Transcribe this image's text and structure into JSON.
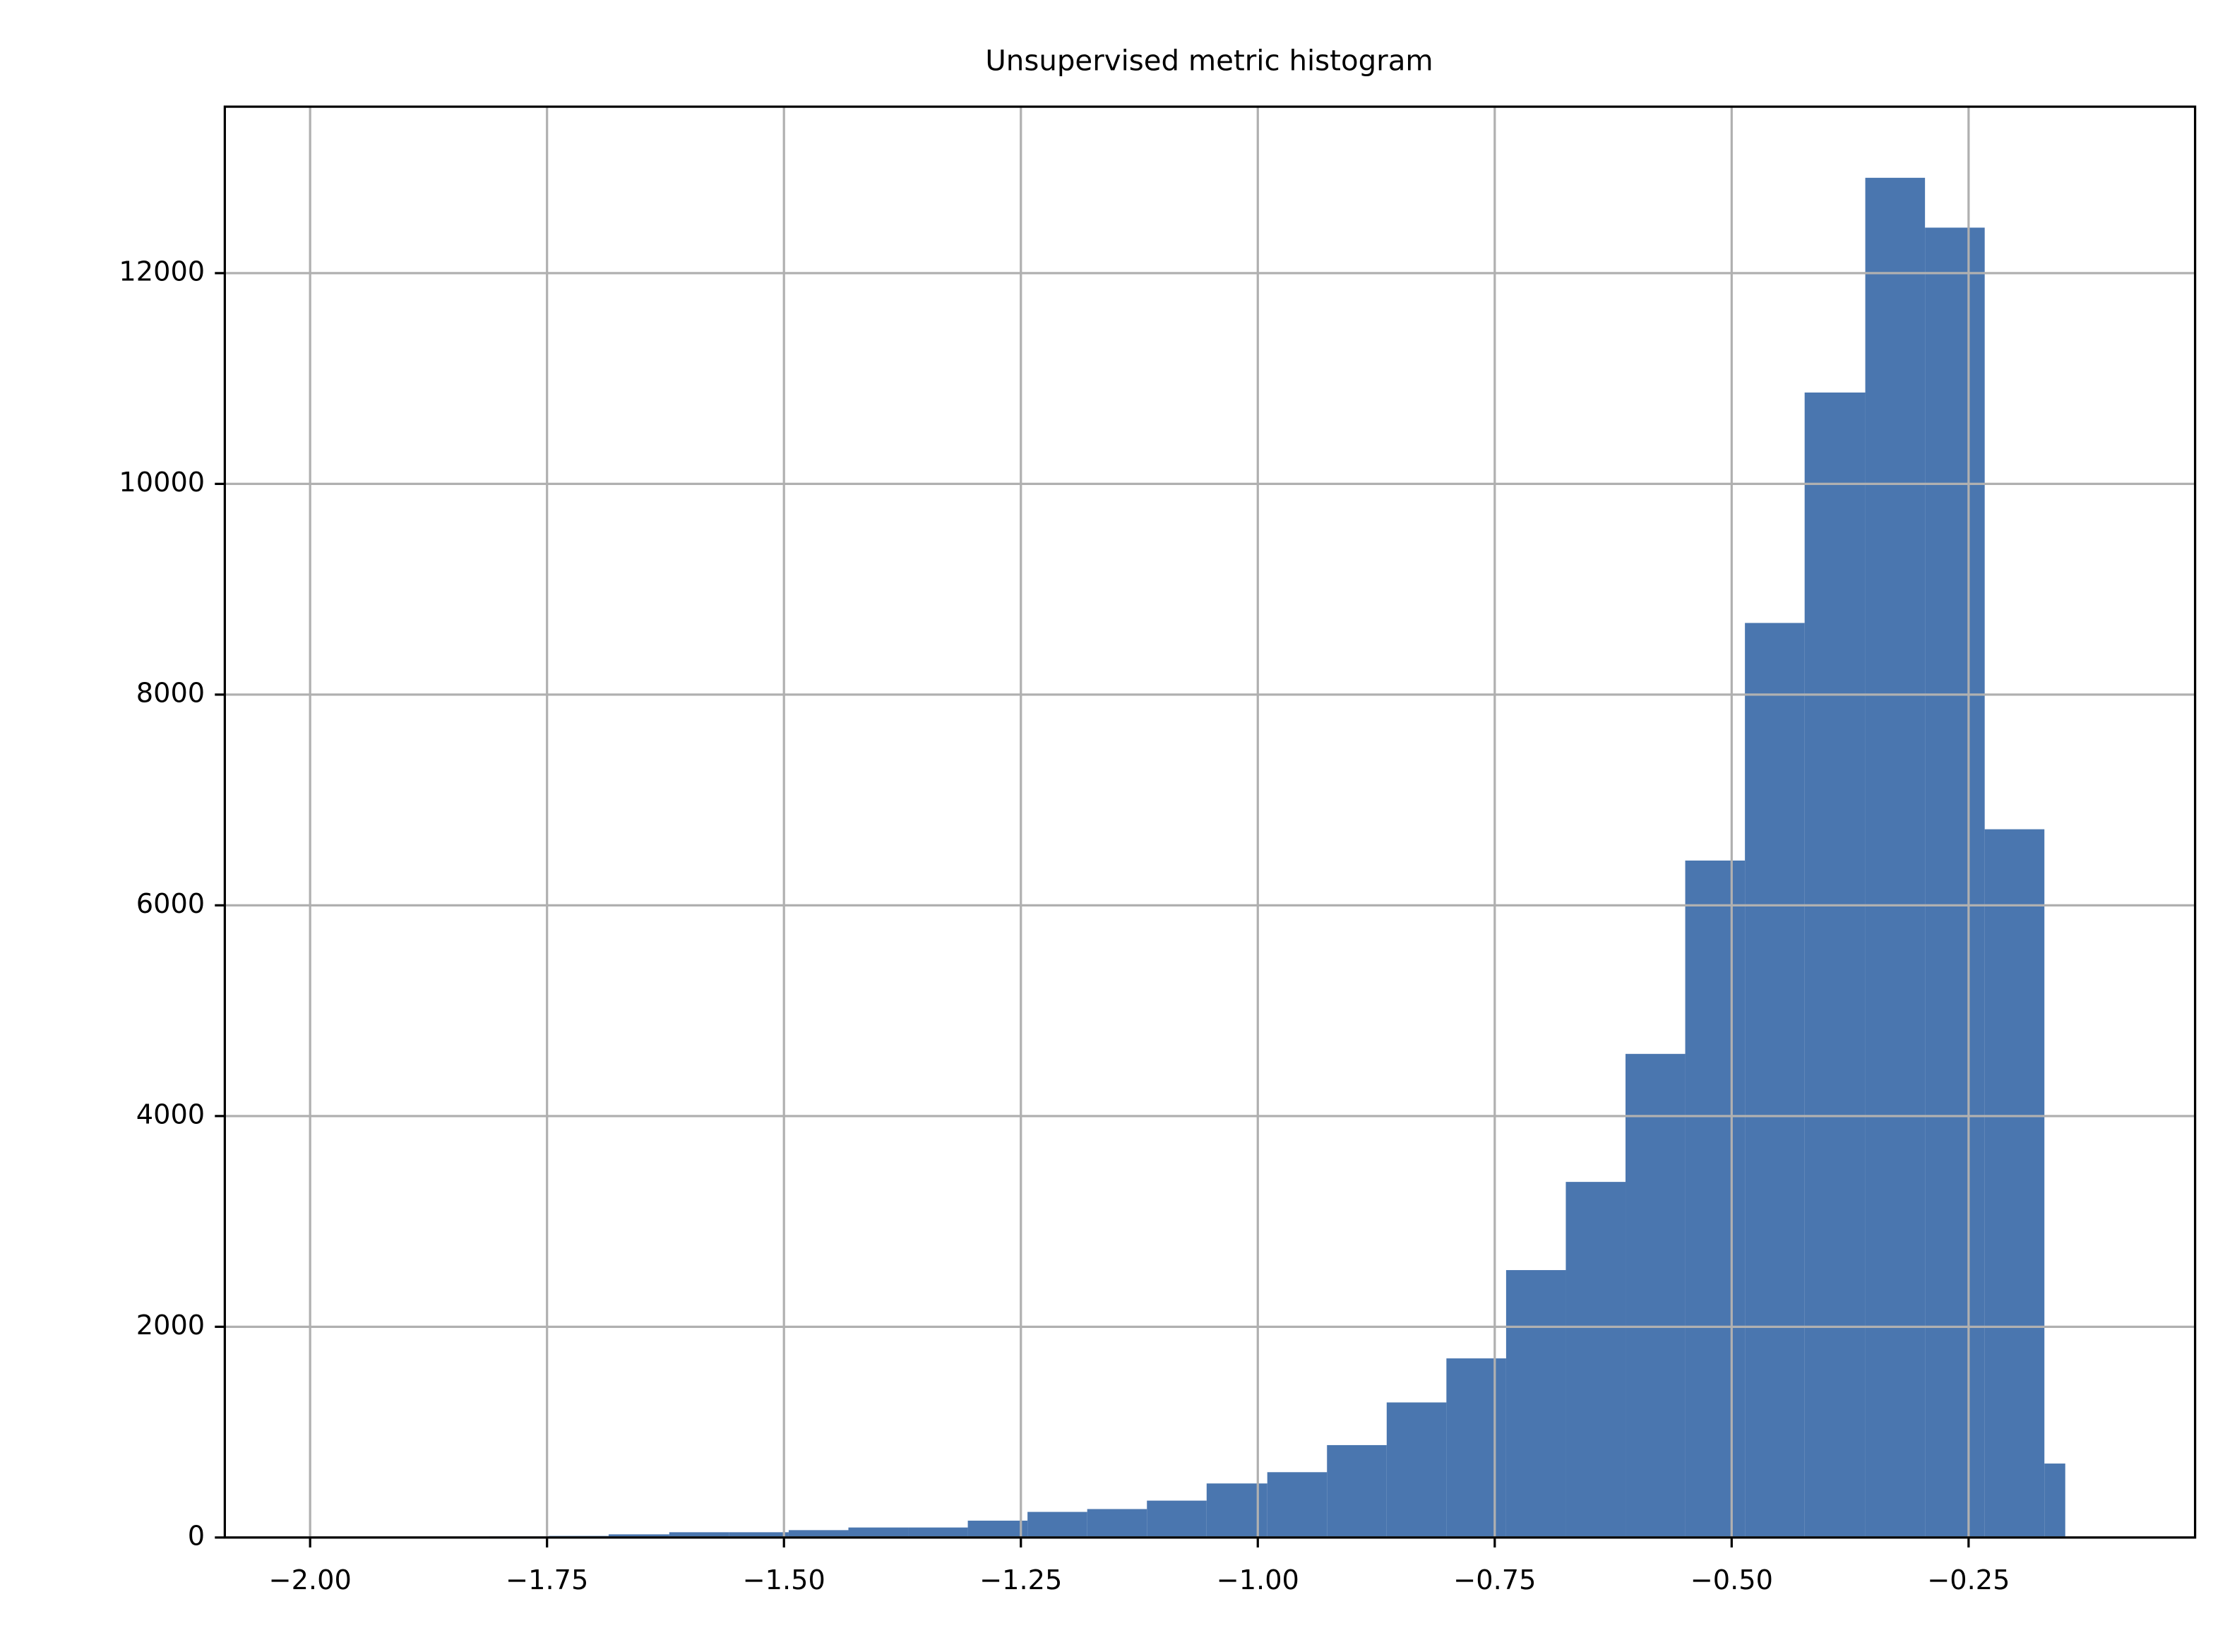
{
  "chart_data": {
    "type": "histogram",
    "title": "Unsupervised metric histogram",
    "bins": [
      -2.0,
      -1.937,
      -1.874,
      -1.811,
      -1.748,
      -1.685,
      -1.621,
      -1.558,
      -1.495,
      -1.432,
      -1.369,
      -1.306,
      -1.243,
      -1.18,
      -1.117,
      -1.054,
      -0.99,
      -0.927,
      -0.864,
      -0.801,
      -0.738,
      -0.675,
      -0.612,
      -0.549,
      -0.486,
      -0.423,
      -0.359,
      -0.296,
      -0.233,
      -0.17,
      -0.148
    ],
    "values": [
      2,
      3,
      5,
      10,
      15,
      30,
      50,
      50,
      70,
      95,
      95,
      160,
      243,
      270,
      350,
      513,
      620,
      877,
      1282,
      1700,
      2538,
      3375,
      4590,
      6425,
      8680,
      10867,
      12905,
      12432,
      6722,
      702
    ],
    "color": "#4a76af",
    "xlim": [
      -2.09,
      -0.011
    ],
    "xticks": [
      {
        "value": -2,
        "label": "−2.00"
      },
      {
        "value": -1.75,
        "label": "−1.75"
      },
      {
        "value": -1.5,
        "label": "−1.50"
      },
      {
        "value": -1.25,
        "label": "−1.25"
      },
      {
        "value": -1,
        "label": "−1.00"
      },
      {
        "value": -0.75,
        "label": "−0.75"
      },
      {
        "value": -0.5,
        "label": "−0.50"
      },
      {
        "value": -0.25,
        "label": "−0.25"
      }
    ],
    "ylim": [
      0,
      13580
    ],
    "yticks": [
      0,
      2000,
      4000,
      6000,
      8000,
      10000,
      12000
    ],
    "grid": true
  }
}
